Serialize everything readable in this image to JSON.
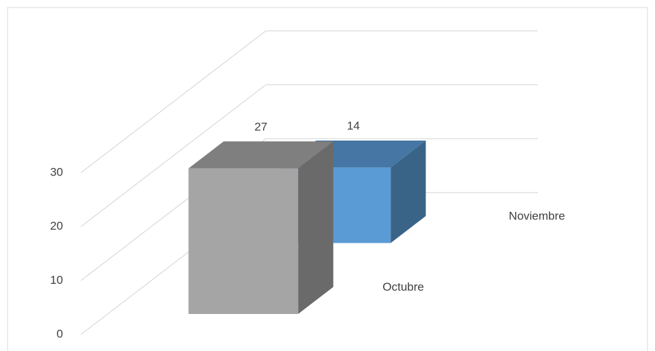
{
  "chart_data": {
    "type": "bar3d",
    "categories": [
      "Octubre",
      "Noviembre"
    ],
    "values": [
      27,
      14
    ],
    "colors": [
      "#a5a5a5",
      "#5b9bd5"
    ],
    "ylim": [
      0,
      30
    ],
    "yticks": [
      0,
      10,
      20,
      30
    ],
    "grid": true
  }
}
